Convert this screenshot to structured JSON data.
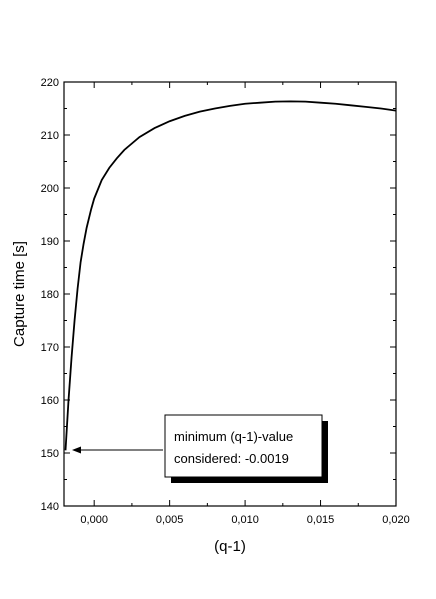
{
  "chart_data": {
    "type": "line",
    "title": "",
    "xlabel": "(q-1)",
    "ylabel": "Capture time [s]",
    "xlim": [
      -0.002,
      0.02
    ],
    "ylim": [
      140,
      220
    ],
    "x_ticks": [
      0.0,
      0.005,
      0.01,
      0.015,
      0.02
    ],
    "x_tick_labels": [
      "0,000",
      "0,005",
      "0,010",
      "0,015",
      "0,020"
    ],
    "y_ticks": [
      140,
      150,
      160,
      170,
      180,
      190,
      200,
      210,
      220
    ],
    "y_tick_labels": [
      "140",
      "150",
      "160",
      "170",
      "180",
      "190",
      "200",
      "210",
      "220"
    ],
    "grid": false,
    "series": [
      {
        "x": [
          -0.0019,
          -0.0017,
          -0.0015,
          -0.0013,
          -0.0011,
          -0.0009,
          -0.0007,
          -0.0005,
          -0.0002,
          0.0,
          0.0005,
          0.001,
          0.0015,
          0.002,
          0.003,
          0.004,
          0.005,
          0.006,
          0.007,
          0.008,
          0.009,
          0.01,
          0.011,
          0.012,
          0.013,
          0.014,
          0.015,
          0.016,
          0.017,
          0.018,
          0.019,
          0.02
        ],
        "y": [
          150.5,
          160.0,
          168.0,
          175.0,
          181.0,
          186.0,
          189.5,
          192.5,
          196.0,
          198.0,
          201.5,
          203.8,
          205.6,
          207.2,
          209.6,
          211.3,
          212.6,
          213.6,
          214.4,
          215.0,
          215.5,
          215.9,
          216.1,
          216.3,
          216.35,
          216.3,
          216.1,
          215.9,
          215.6,
          215.3,
          215.0,
          214.6
        ]
      }
    ],
    "annotation": {
      "line1": "minimum (q-1)-value",
      "line2": "considered: -0.0019",
      "arrow_target": {
        "x": -0.0019,
        "y": 150.5
      }
    }
  }
}
